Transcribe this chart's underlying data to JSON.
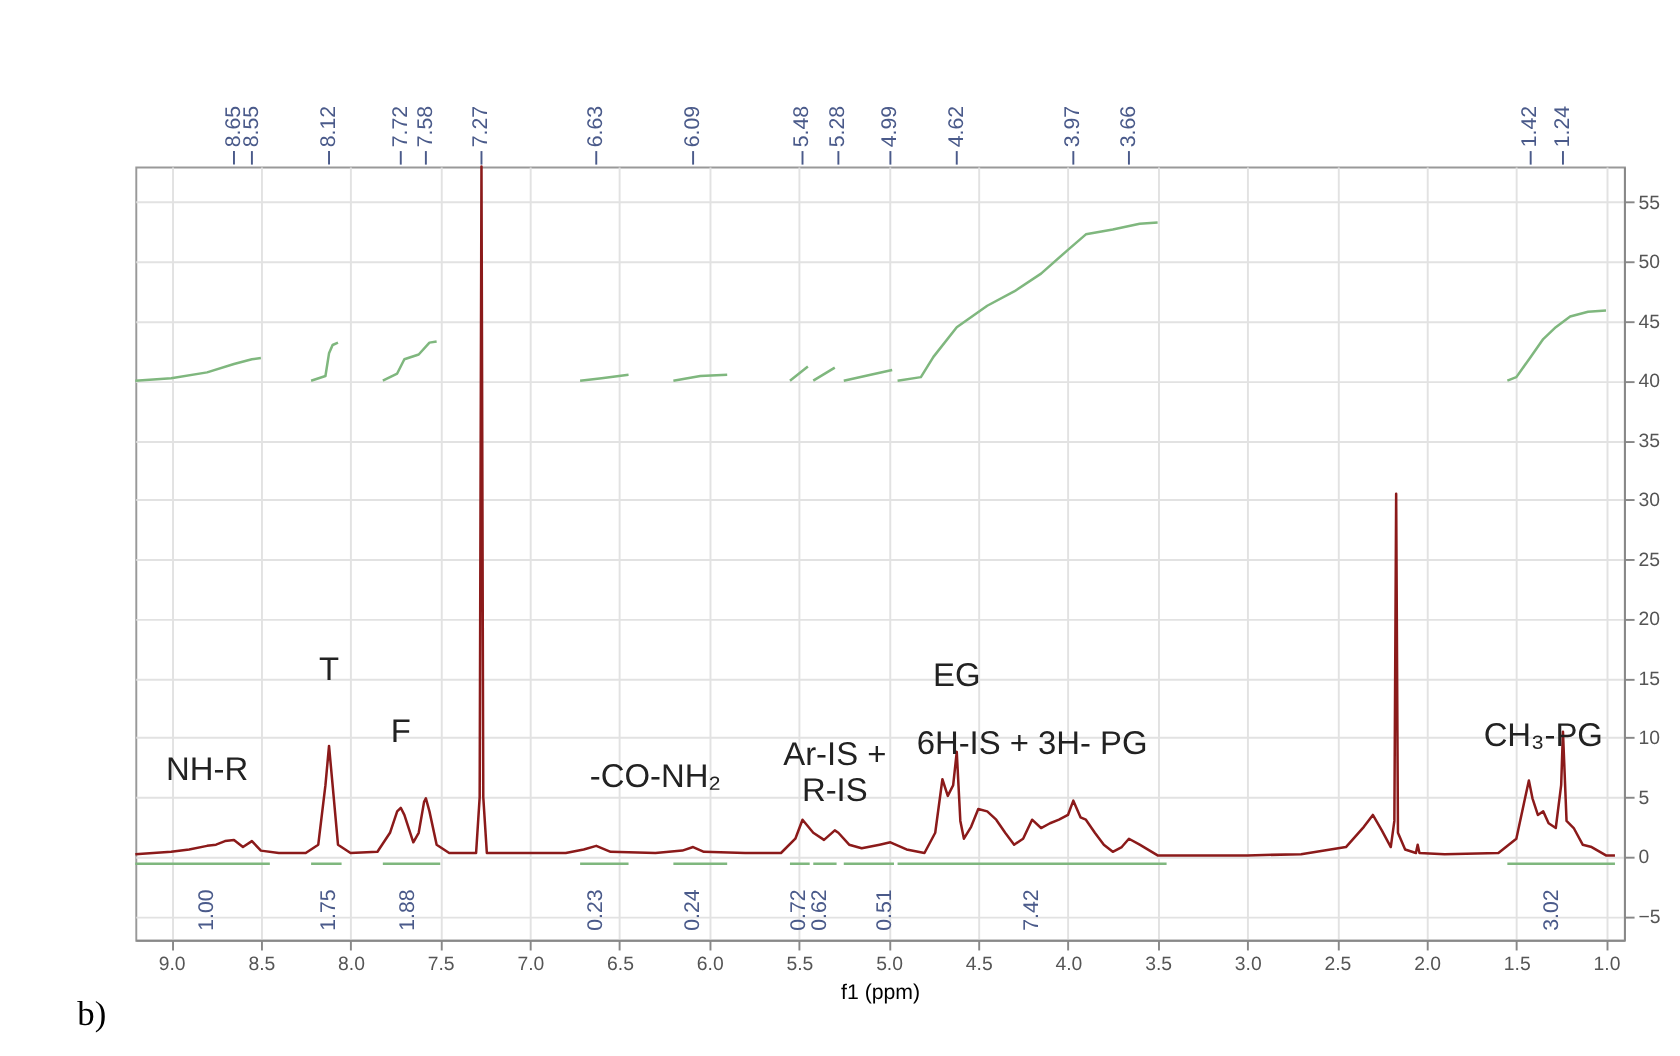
{
  "chart_data": {
    "type": "line",
    "xlabel": "f1 (ppm)",
    "xlim": [
      9.2,
      0.9
    ],
    "xticks": [
      {
        "value": 9,
        "label": "9.0"
      },
      8.5,
      {
        "value": 8,
        "label": "8.0"
      },
      7.5,
      {
        "value": 7,
        "label": "7.0"
      },
      6.5,
      {
        "value": 6,
        "label": "6.0"
      },
      5.5,
      {
        "value": 5,
        "label": "5.0"
      },
      4.5,
      {
        "value": 4,
        "label": "4.0"
      },
      3.5,
      {
        "value": 3,
        "label": "3.0"
      },
      2.5,
      {
        "value": 2,
        "label": "2.0"
      },
      1.5,
      {
        "value": 1,
        "label": "1.0"
      }
    ],
    "ylim": [
      -7,
      58
    ],
    "yticks": [
      -5,
      0,
      5,
      10,
      15,
      20,
      25,
      30,
      35,
      40,
      45,
      50,
      55
    ],
    "grid": true,
    "series": [
      {
        "color": "#8b1a1a",
        "x": [
          9.2,
          9.0,
          8.9,
          8.8,
          8.75,
          8.7,
          8.65,
          8.6,
          8.55,
          8.5,
          8.4,
          8.25,
          8.18,
          8.14,
          8.12,
          8.1,
          8.07,
          8.0,
          7.85,
          7.78,
          7.74,
          7.72,
          7.7,
          7.65,
          7.62,
          7.59,
          7.58,
          7.56,
          7.52,
          7.45,
          7.3,
          7.28,
          7.27,
          7.26,
          7.24,
          7.1,
          6.8,
          6.7,
          6.63,
          6.55,
          6.3,
          6.15,
          6.09,
          6.03,
          5.8,
          5.6,
          5.52,
          5.48,
          5.42,
          5.36,
          5.3,
          5.28,
          5.22,
          5.15,
          5.05,
          4.99,
          4.9,
          4.8,
          4.74,
          4.7,
          4.67,
          4.64,
          4.62,
          4.6,
          4.58,
          4.54,
          4.5,
          4.45,
          4.4,
          4.35,
          4.3,
          4.25,
          4.2,
          4.15,
          4.1,
          4.05,
          4.0,
          3.97,
          3.93,
          3.9,
          3.85,
          3.8,
          3.75,
          3.7,
          3.66,
          3.6,
          3.5,
          3.3,
          3.0,
          2.7,
          2.45,
          2.35,
          2.3,
          2.25,
          2.2,
          2.18,
          2.17,
          2.16,
          2.12,
          2.06,
          2.05,
          2.04,
          1.9,
          1.6,
          1.5,
          1.45,
          1.43,
          1.41,
          1.38,
          1.35,
          1.32,
          1.28,
          1.25,
          1.24,
          1.22,
          1.18,
          1.13,
          1.08,
          1.0,
          0.95
        ],
        "values": [
          0.2,
          0.4,
          0.6,
          0.9,
          1.0,
          1.3,
          1.4,
          0.8,
          1.3,
          0.5,
          0.3,
          0.3,
          1.0,
          6.0,
          9.3,
          6.0,
          1.0,
          0.3,
          0.4,
          2.0,
          3.8,
          4.1,
          3.5,
          1.2,
          2.0,
          4.6,
          4.9,
          3.8,
          1.0,
          0.3,
          0.3,
          5.0,
          58,
          5.0,
          0.3,
          0.3,
          0.3,
          0.6,
          0.9,
          0.4,
          0.3,
          0.5,
          0.8,
          0.4,
          0.3,
          0.3,
          1.5,
          3.1,
          2.0,
          1.4,
          2.2,
          2.0,
          1.0,
          0.7,
          1.0,
          1.2,
          0.6,
          0.3,
          2.0,
          6.5,
          5.1,
          6.0,
          8.8,
          3.0,
          1.5,
          2.5,
          4.0,
          3.8,
          3.1,
          2.0,
          1.0,
          1.5,
          3.1,
          2.4,
          2.8,
          3.1,
          3.5,
          4.7,
          3.3,
          3.1,
          2.0,
          1.0,
          0.4,
          0.8,
          1.5,
          1.0,
          0.1,
          0.1,
          0.1,
          0.2,
          0.8,
          2.5,
          3.5,
          2.2,
          0.8,
          3.0,
          30.5,
          2.0,
          0.6,
          0.3,
          1.0,
          0.3,
          0.2,
          0.3,
          1.5,
          5.0,
          6.4,
          4.9,
          3.5,
          3.8,
          2.8,
          2.4,
          6.0,
          10.5,
          3.0,
          2.4,
          1.0,
          0.8,
          0.1,
          0.1
        ]
      },
      {
        "color": "#7fb77e",
        "x": [
          9.2,
          9.0,
          8.8,
          8.65,
          8.55,
          8.5,
          8.49,
          8.22,
          8.14,
          8.12,
          8.1,
          8.07,
          8.06,
          7.82,
          7.74,
          7.7,
          7.62,
          7.56,
          7.52,
          7.51,
          6.72,
          6.6,
          6.45,
          6.44,
          6.2,
          6.05,
          5.9,
          5.89,
          5.55,
          5.45,
          5.44,
          5.42,
          5.3,
          5.29,
          5.25,
          5.1,
          4.98,
          4.97,
          4.95,
          4.82,
          4.75,
          4.62,
          4.45,
          4.3,
          4.15,
          4.0,
          3.9,
          3.75,
          3.6,
          3.5,
          3.49,
          1.55,
          1.5,
          1.42,
          1.35,
          1.28,
          1.2,
          1.1,
          1.0
        ],
        "values": [
          40,
          40.2,
          40.7,
          41.4,
          41.8,
          41.9,
          null,
          40,
          40.4,
          42.3,
          43.0,
          43.2,
          null,
          40,
          40.6,
          41.8,
          42.2,
          43.2,
          43.3,
          null,
          40,
          40.2,
          40.5,
          null,
          40,
          40.4,
          40.5,
          null,
          40,
          41.2,
          null,
          40,
          41.1,
          null,
          40,
          40.5,
          40.9,
          null,
          40,
          40.3,
          42.0,
          44.5,
          46.3,
          47.5,
          49.0,
          51.0,
          52.3,
          52.7,
          53.2,
          53.3,
          null,
          40,
          40.3,
          42.0,
          43.5,
          44.5,
          45.4,
          45.8,
          45.9
        ]
      },
      {
        "color": "#7fb77e",
        "x": [
          9.2,
          8.45,
          8.44,
          8.22,
          8.05,
          8.04,
          7.82,
          7.5,
          7.49,
          6.72,
          6.45,
          6.44,
          6.2,
          5.9,
          5.89,
          5.55,
          5.44,
          5.43,
          5.42,
          5.29,
          5.28,
          5.25,
          4.97,
          4.96,
          4.95,
          3.45,
          3.44,
          1.55,
          0.95
        ],
        "values": [
          -0.6,
          -0.6,
          null,
          -0.6,
          -0.6,
          null,
          -0.6,
          -0.6,
          null,
          -0.6,
          -0.6,
          null,
          -0.6,
          -0.6,
          null,
          -0.6,
          -0.6,
          null,
          -0.6,
          -0.6,
          null,
          -0.6,
          -0.6,
          null,
          -0.6,
          -0.6,
          null,
          -0.6,
          -0.6
        ]
      }
    ],
    "annotations": [
      {
        "text": "NH-R",
        "x": 8.8,
        "y": 0.9
      },
      {
        "text": "T",
        "x": 8.12,
        "y": 9.3
      },
      {
        "text": "F",
        "x": 7.72,
        "y": 4.1
      },
      {
        "text": "-CO-NH₂",
        "x": 6.3,
        "y": 0.3
      },
      {
        "text": "Ar-IS +\nR-IS",
        "x": 5.3,
        "y": 2.2
      },
      {
        "text": "6H-IS + 3H- PG",
        "x": 4.2,
        "y": 3.1
      },
      {
        "text": "EG",
        "x": 4.62,
        "y": 8.8
      },
      {
        "text": "CH₃-PG",
        "x": 1.35,
        "y": 3.8
      },
      {
        "text": "1.00",
        "x": 8.8,
        "y": -0.6
      },
      {
        "text": "1.75",
        "x": 8.12,
        "y": -0.6
      },
      {
        "text": "1.88",
        "x": 7.68,
        "y": -0.6
      },
      {
        "text": "0.23",
        "x": 6.63,
        "y": -0.6
      },
      {
        "text": "0.24",
        "x": 6.09,
        "y": -0.6
      },
      {
        "text": "0.72",
        "x": 5.5,
        "y": -0.6
      },
      {
        "text": "0.62",
        "x": 5.38,
        "y": -0.6
      },
      {
        "text": "0.51",
        "x": 5.02,
        "y": -0.6
      },
      {
        "text": "7.42",
        "x": 4.2,
        "y": -0.6
      },
      {
        "text": "3.02",
        "x": 1.3,
        "y": -0.6
      },
      {
        "text": "8.65",
        "x": 8.65
      },
      {
        "text": "8.55",
        "x": 8.55
      },
      {
        "text": "8.12",
        "x": 8.12
      },
      {
        "text": "7.72",
        "x": 7.72
      },
      {
        "text": "7.58",
        "x": 7.58
      },
      {
        "text": "7.27",
        "x": 7.27
      },
      {
        "text": "6.63",
        "x": 6.63
      },
      {
        "text": "6.09",
        "x": 6.09
      },
      {
        "text": "5.48",
        "x": 5.48
      },
      {
        "text": "5.28",
        "x": 5.28
      },
      {
        "text": "4.99",
        "x": 4.99
      },
      {
        "text": "4.62",
        "x": 4.62
      },
      {
        "text": "3.97",
        "x": 3.97
      },
      {
        "text": "3.66",
        "x": 3.66
      },
      {
        "text": "1.42",
        "x": 1.42
      },
      {
        "text": "1.24",
        "x": 1.24
      },
      "b)"
    ]
  }
}
